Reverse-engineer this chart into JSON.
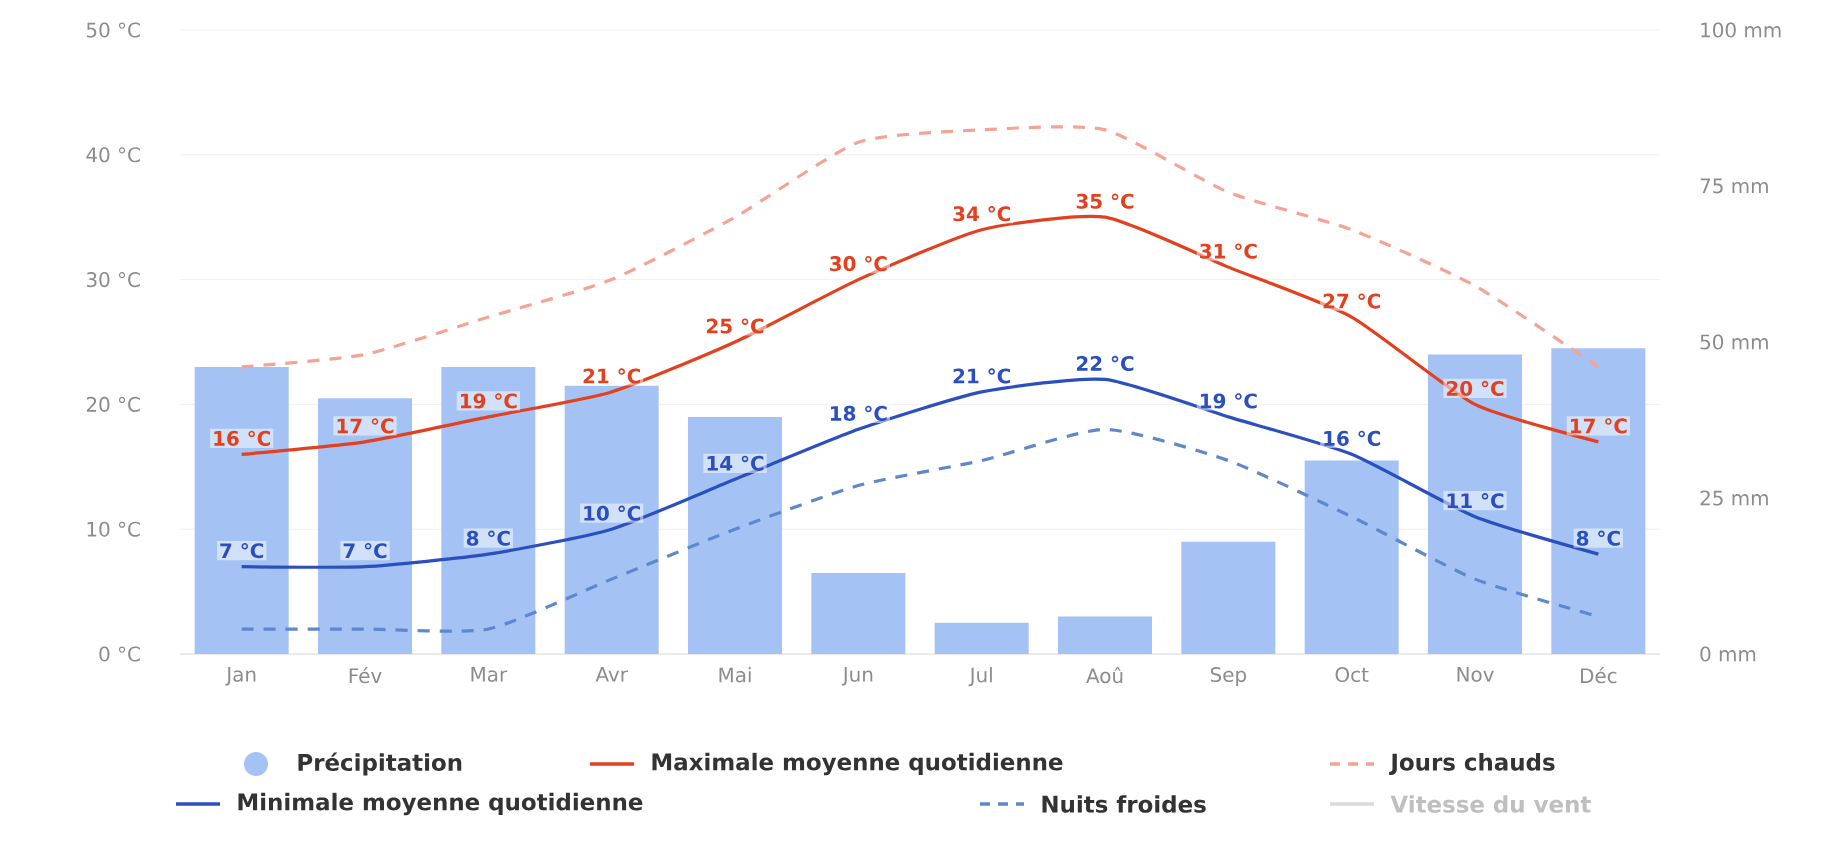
{
  "chart_data": {
    "type": "bar",
    "categories": [
      "Jan",
      "Fév",
      "Mar",
      "Avr",
      "Mai",
      "Jun",
      "Jul",
      "Aoû",
      "Sep",
      "Oct",
      "Nov",
      "Déc"
    ],
    "series": [
      {
        "name": "Précipitation",
        "axis": "y2",
        "color": "#a4c2f4",
        "values": [
          46,
          41,
          46,
          43,
          38,
          13,
          5,
          6,
          18,
          31,
          48,
          49
        ]
      },
      {
        "name": "Maximale moyenne quotidienne",
        "type": "line",
        "color": "#e2401f",
        "values": [
          16,
          17,
          19,
          21,
          25,
          30,
          34,
          35,
          31,
          27,
          20,
          17
        ],
        "value_labels": [
          "16 °C",
          "17 °C",
          "19 °C",
          "21 °C",
          "25 °C",
          "30 °C",
          "34 °C",
          "35 °C",
          "31 °C",
          "27 °C",
          "20 °C",
          "17 °C"
        ]
      },
      {
        "name": "Jours chauds",
        "type": "line",
        "line_style": "dashed",
        "color": "#f5a394",
        "values": [
          23,
          24,
          27,
          30,
          35,
          41,
          42,
          42,
          37,
          34,
          29.5,
          23
        ]
      },
      {
        "name": "Minimale moyenne quotidienne",
        "type": "line",
        "color": "#2c4fc0",
        "values": [
          7,
          7,
          8,
          10,
          14,
          18,
          21,
          22,
          19,
          16,
          11,
          8
        ],
        "value_labels": [
          "7 °C",
          "7 °C",
          "8 °C",
          "10 °C",
          "14 °C",
          "18 °C",
          "21 °C",
          "22 °C",
          "19 °C",
          "16 °C",
          "11 °C",
          "8 °C"
        ]
      },
      {
        "name": "Nuits froides",
        "type": "line",
        "line_style": "dashed",
        "color": "#5f88cc",
        "values": [
          2,
          2,
          2,
          6,
          10,
          13.5,
          15.5,
          18,
          15.5,
          11,
          6,
          3
        ]
      },
      {
        "name": "Vitesse du vent",
        "type": "line",
        "color": "#d9d9d9",
        "values": [
          null,
          null,
          null,
          null,
          null,
          null,
          null,
          null,
          null,
          null,
          null,
          null
        ]
      }
    ],
    "ylim": [
      0,
      50
    ],
    "yticks": [
      {
        "value": 0,
        "label": "0 °C"
      },
      {
        "value": 10,
        "label": "10 °C"
      },
      {
        "value": 20,
        "label": "20 °C"
      },
      {
        "value": 30,
        "label": "30 °C"
      },
      {
        "value": 40,
        "label": "40 °C"
      },
      {
        "value": 50,
        "label": "50 °C"
      }
    ],
    "y2lim": [
      0,
      100
    ],
    "y2ticks": [
      {
        "value": 0,
        "label": "0 mm"
      },
      {
        "value": 25,
        "label": "25 mm"
      },
      {
        "value": 50,
        "label": "50 mm"
      },
      {
        "value": 75,
        "label": "75 mm"
      },
      {
        "value": 100,
        "label": "100 mm"
      }
    ],
    "grid": "y",
    "legend": "bottom",
    "marker": "none"
  }
}
